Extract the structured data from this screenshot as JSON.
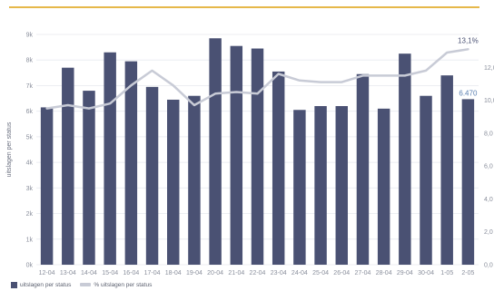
{
  "chart_data": {
    "type": "bar",
    "categories": [
      "12-04",
      "13-04",
      "14-04",
      "15-04",
      "16-04",
      "17-04",
      "18-04",
      "19-04",
      "20-04",
      "21-04",
      "22-04",
      "23-04",
      "24-04",
      "25-04",
      "26-04",
      "27-04",
      "28-04",
      "29-04",
      "30-04",
      "1-05",
      "2-05"
    ],
    "series": [
      {
        "name": "uitslagen per status",
        "type": "bar",
        "axis": "left",
        "color": "#4a5173",
        "values": [
          6150,
          7700,
          6800,
          8300,
          7950,
          6950,
          6450,
          6600,
          8850,
          8550,
          8450,
          7550,
          6050,
          6200,
          6200,
          7450,
          6100,
          8250,
          6600,
          7400,
          6470
        ]
      },
      {
        "name": "% uitslagen per status",
        "type": "line",
        "axis": "right",
        "color": "#c8cbd6",
        "values": [
          9.5,
          9.7,
          9.5,
          9.8,
          10.9,
          11.8,
          10.9,
          9.7,
          10.4,
          10.5,
          10.4,
          11.6,
          11.2,
          11.1,
          11.1,
          11.5,
          11.5,
          11.5,
          11.8,
          12.9,
          13.1
        ]
      }
    ],
    "ylabel": "uitslagen per status",
    "ylim": [
      0,
      9000
    ],
    "yticks": [
      "0k",
      "1k",
      "2k",
      "3k",
      "4k",
      "5k",
      "6k",
      "7k",
      "8k",
      "9k"
    ],
    "y2lim": [
      0,
      14
    ],
    "y2ticks": [
      "0,0",
      "2,0",
      "4,0",
      "6,0",
      "8,0",
      "10,0",
      "12,0"
    ],
    "end_labels": {
      "bar_last": "6.470",
      "line_last": "13,1%"
    },
    "legend_position": "bottom-left"
  },
  "legend": [
    {
      "label": "uitslagen per status",
      "color": "#4a5173"
    },
    {
      "label": "% uitslagen per status",
      "color": "#c8cbd6"
    }
  ]
}
